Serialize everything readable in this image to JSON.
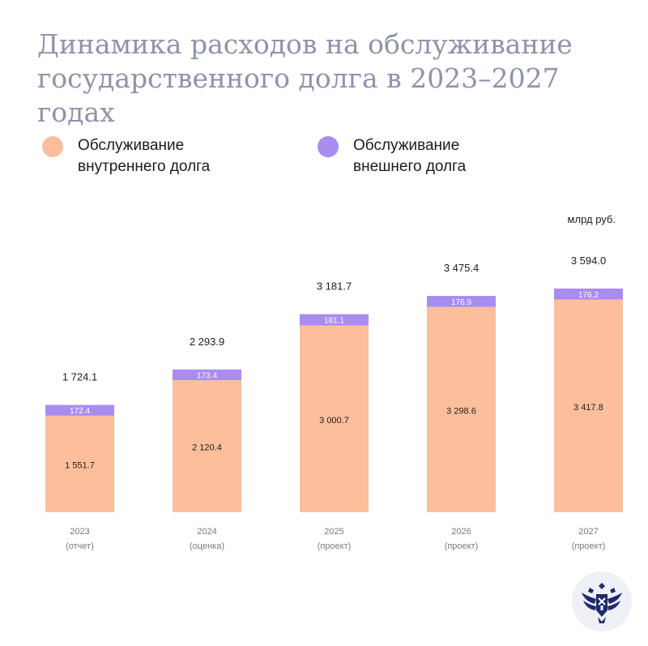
{
  "title": "Динамика расходов на обслуживание государственного долга в 2023–2027 годах",
  "unit": "млрд руб.",
  "legend": [
    {
      "label": "Обслуживание внутреннего долга",
      "color": "#fdbf9b"
    },
    {
      "label": "Обслуживание внешнего долга",
      "color": "#a98cf0"
    }
  ],
  "colors": {
    "text": "#1c1c1c",
    "axis_text": "#7a7a7a",
    "bar_label_light": "#ffffff",
    "title": "#8f93aa",
    "emblem": "#1f2a6e"
  },
  "logo_icon": "double-headed-eagle-emblem",
  "chart_data": {
    "type": "bar",
    "stacked": true,
    "categories": [
      "2023",
      "2024",
      "2025",
      "2026",
      "2027"
    ],
    "category_notes": [
      "(отчет)",
      "(оценка)",
      "(проект)",
      "(проект)",
      "(проект)"
    ],
    "series": [
      {
        "name": "Обслуживание внутреннего долга",
        "values": [
          1551.7,
          2120.4,
          3000.7,
          3298.6,
          3417.8
        ],
        "labels": [
          "1 551.7",
          "2 120.4",
          "3 000.7",
          "3 298.6",
          "3 417.8"
        ]
      },
      {
        "name": "Обслуживание внешнего долга",
        "values": [
          172.4,
          173.4,
          181.1,
          176.9,
          176.2
        ],
        "labels": [
          "172.4",
          "173.4",
          "181.1",
          "176.9",
          "176.2"
        ]
      }
    ],
    "totals": [
      1724.1,
      2293.9,
      3181.7,
      3475.4,
      3594.0
    ],
    "total_labels": [
      "1 724.1",
      "2 293.9",
      "3 181.7",
      "3 475.4",
      "3 594.0"
    ],
    "ylabel": "млрд руб.",
    "ylim": [
      0,
      3594.0
    ],
    "grid": false,
    "legend_position": "top"
  }
}
